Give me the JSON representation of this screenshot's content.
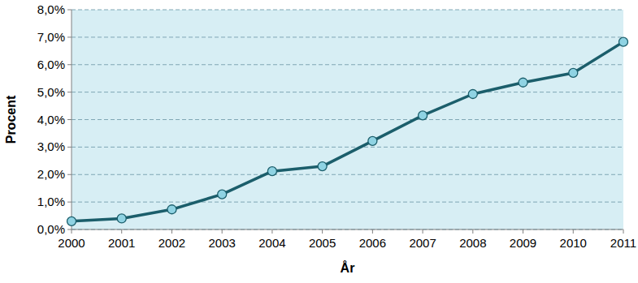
{
  "chart_data": {
    "type": "line",
    "x_label": "År",
    "y_label": "Procent",
    "categories": [
      "2000",
      "2001",
      "2002",
      "2003",
      "2004",
      "2005",
      "2006",
      "2007",
      "2008",
      "2009",
      "2010",
      "2011"
    ],
    "values": [
      0.3,
      0.4,
      0.73,
      1.28,
      2.12,
      2.3,
      3.22,
      4.15,
      4.93,
      5.35,
      5.7,
      6.83
    ],
    "color": "#1b5e6b",
    "marker": "circle",
    "ylim": [
      0,
      8
    ],
    "yticks": [
      {
        "value": 0,
        "label": "0,0%"
      },
      {
        "value": 1,
        "label": "1,0%"
      },
      {
        "value": 2,
        "label": "2,0%"
      },
      {
        "value": 3,
        "label": "3,0%"
      },
      {
        "value": 4,
        "label": "4,0%"
      },
      {
        "value": 5,
        "label": "5,0%"
      },
      {
        "value": 6,
        "label": "6,0%"
      },
      {
        "value": 7,
        "label": "7,0%"
      },
      {
        "value": 8,
        "label": "8,0%"
      }
    ],
    "grid": true
  }
}
